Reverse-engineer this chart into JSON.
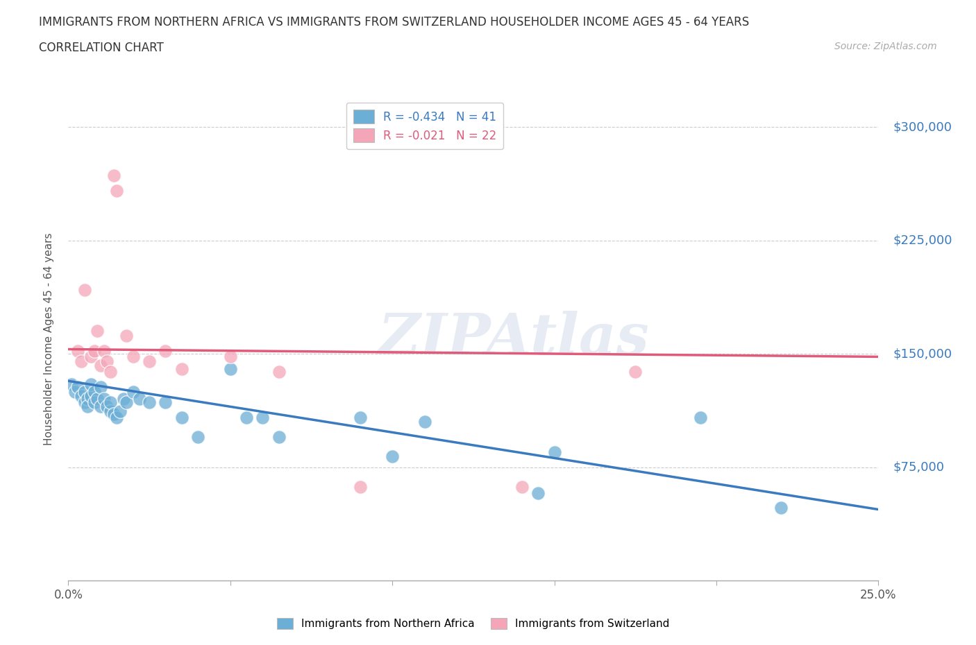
{
  "title_line1": "IMMIGRANTS FROM NORTHERN AFRICA VS IMMIGRANTS FROM SWITZERLAND HOUSEHOLDER INCOME AGES 45 - 64 YEARS",
  "title_line2": "CORRELATION CHART",
  "source": "Source: ZipAtlas.com",
  "ylabel": "Householder Income Ages 45 - 64 years",
  "xlim": [
    0.0,
    0.25
  ],
  "ylim": [
    0,
    320000
  ],
  "yticks": [
    0,
    75000,
    150000,
    225000,
    300000
  ],
  "ytick_labels": [
    "",
    "$75,000",
    "$150,000",
    "$225,000",
    "$300,000"
  ],
  "xticks": [
    0.0,
    0.05,
    0.1,
    0.15,
    0.2,
    0.25
  ],
  "xtick_labels": [
    "0.0%",
    "",
    "",
    "",
    "",
    "25.0%"
  ],
  "watermark": "ZIPAtlas",
  "legend_r1": "R = -0.434   N = 41",
  "legend_r2": "R = -0.021   N = 22",
  "blue_color": "#6baed6",
  "pink_color": "#f4a6b8",
  "blue_line_color": "#3a7abf",
  "pink_line_color": "#e05a7a",
  "blue_scatter_x": [
    0.001,
    0.002,
    0.003,
    0.004,
    0.005,
    0.005,
    0.006,
    0.006,
    0.007,
    0.007,
    0.008,
    0.008,
    0.009,
    0.01,
    0.01,
    0.011,
    0.012,
    0.013,
    0.013,
    0.014,
    0.015,
    0.016,
    0.017,
    0.018,
    0.02,
    0.022,
    0.025,
    0.03,
    0.035,
    0.04,
    0.05,
    0.055,
    0.06,
    0.065,
    0.09,
    0.1,
    0.11,
    0.145,
    0.15,
    0.195,
    0.22
  ],
  "blue_scatter_y": [
    130000,
    125000,
    128000,
    122000,
    118000,
    125000,
    120000,
    115000,
    122000,
    130000,
    125000,
    118000,
    120000,
    128000,
    115000,
    120000,
    115000,
    112000,
    118000,
    110000,
    108000,
    112000,
    120000,
    118000,
    125000,
    120000,
    118000,
    118000,
    108000,
    95000,
    140000,
    108000,
    108000,
    95000,
    108000,
    82000,
    105000,
    58000,
    85000,
    108000,
    48000
  ],
  "pink_scatter_x": [
    0.003,
    0.004,
    0.005,
    0.007,
    0.008,
    0.009,
    0.01,
    0.011,
    0.012,
    0.013,
    0.014,
    0.015,
    0.018,
    0.02,
    0.025,
    0.03,
    0.035,
    0.05,
    0.065,
    0.09,
    0.14,
    0.175
  ],
  "pink_scatter_y": [
    152000,
    145000,
    192000,
    148000,
    152000,
    165000,
    142000,
    152000,
    145000,
    138000,
    268000,
    258000,
    162000,
    148000,
    145000,
    152000,
    140000,
    148000,
    138000,
    62000,
    62000,
    138000
  ],
  "blue_trend_x0": 0.0,
  "blue_trend_x1": 0.25,
  "blue_trend_y0": 132000,
  "blue_trend_y1": 47000,
  "pink_trend_x0": 0.0,
  "pink_trend_x1": 0.25,
  "pink_trend_y0": 153000,
  "pink_trend_y1": 148000,
  "background_color": "#ffffff",
  "dashed_grid_color": "#cccccc"
}
